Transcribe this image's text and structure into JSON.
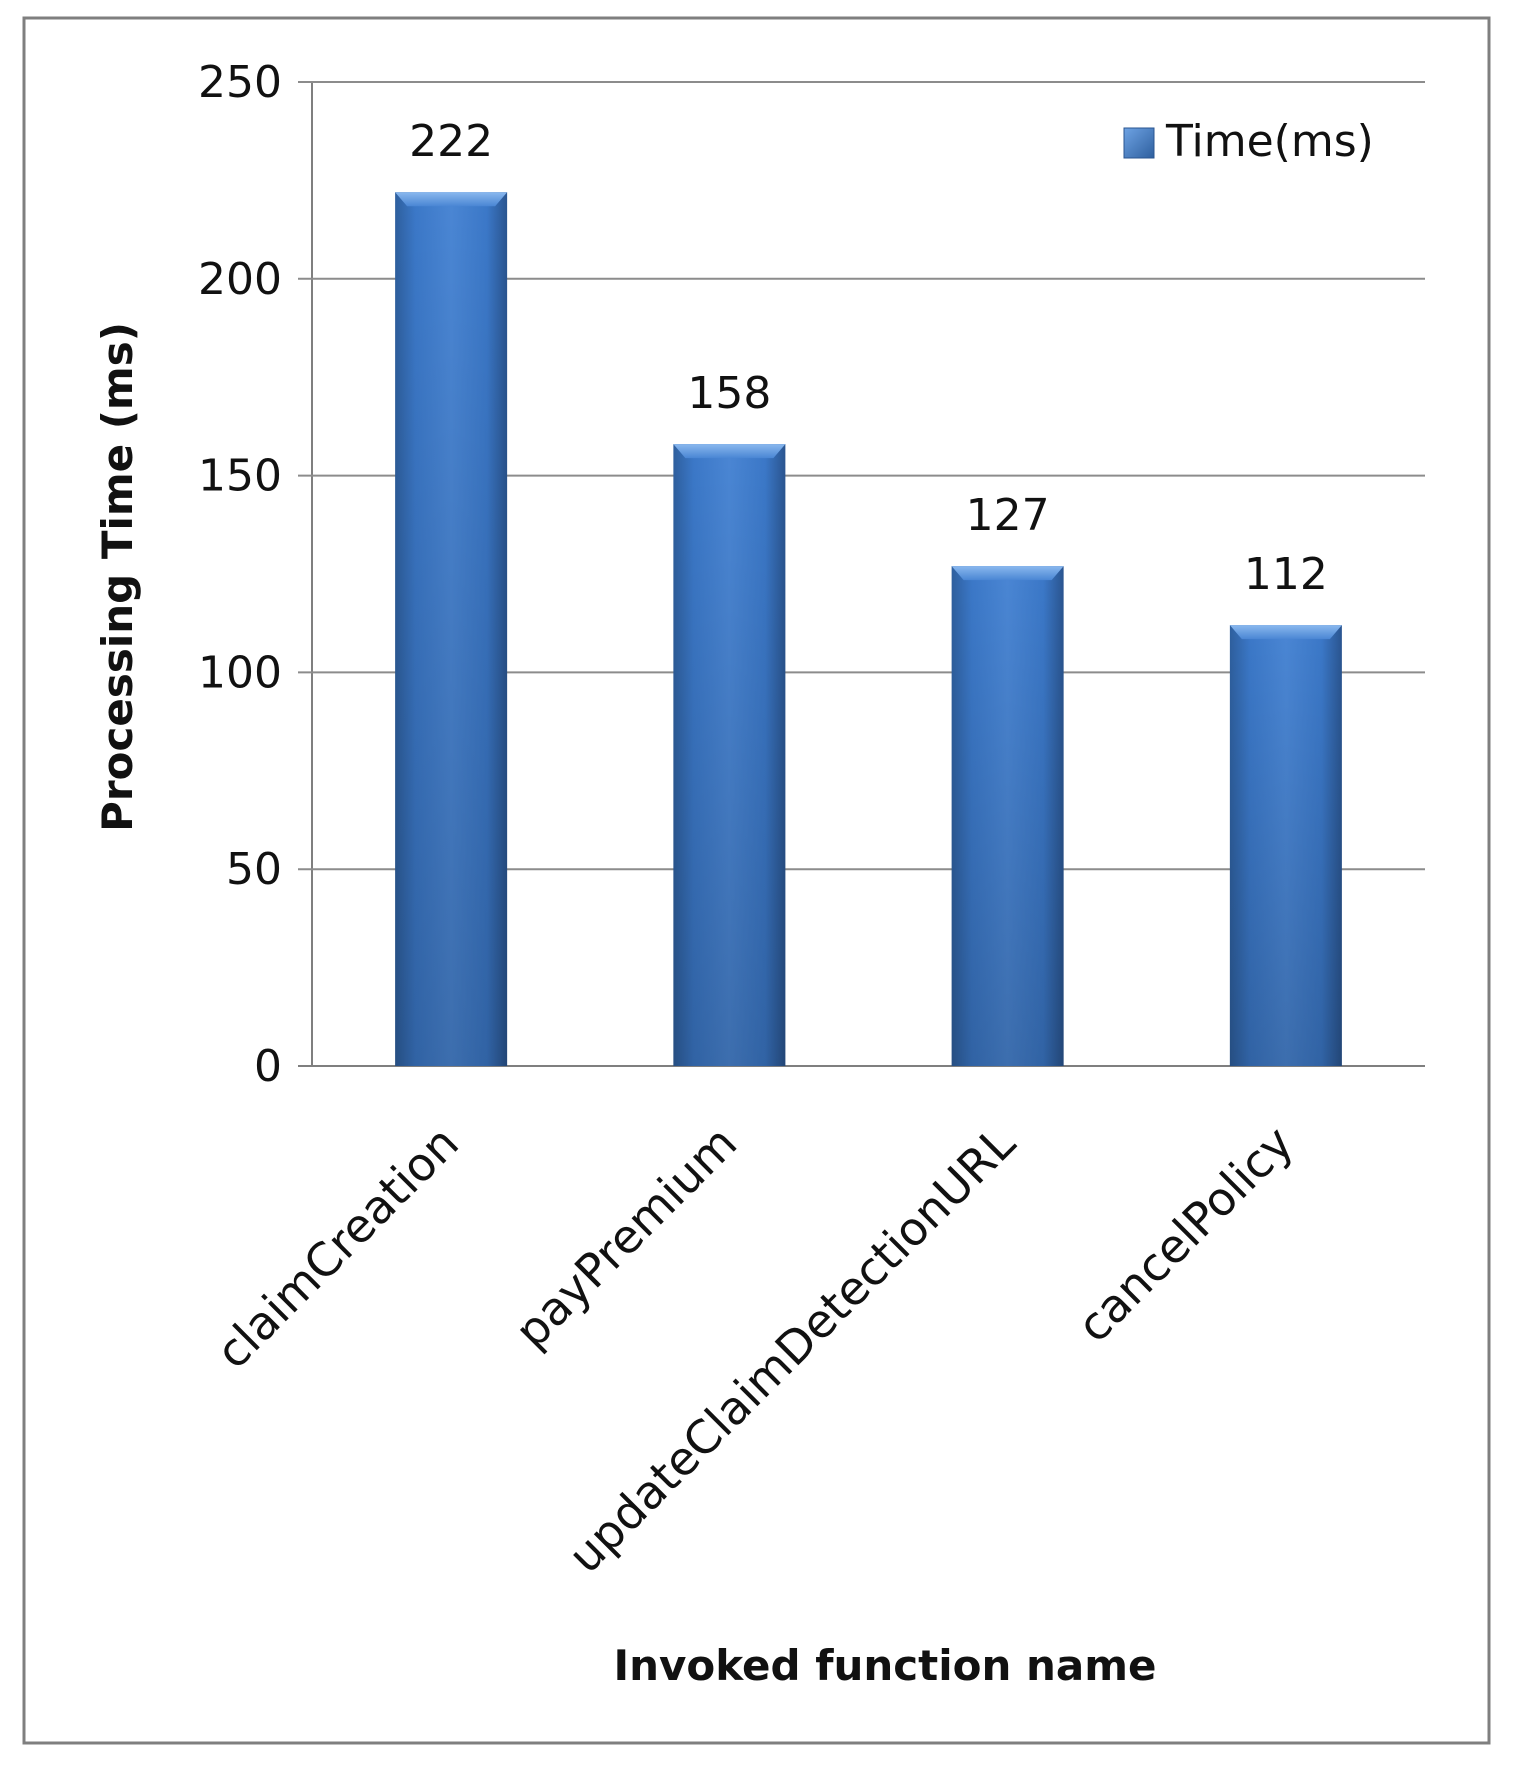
{
  "chart_data": {
    "type": "bar",
    "title": "",
    "xlabel": "Invoked function name",
    "ylabel": "Processing Time (ms)",
    "categories": [
      "claimCreation",
      "payPremium",
      "updateClaimDetectionURL",
      "cancelPolicy"
    ],
    "series": [
      {
        "name": "Time(ms)",
        "values": [
          222,
          158,
          127,
          112
        ],
        "color": "#3b78c8"
      }
    ],
    "ylim": [
      0,
      250
    ],
    "yticks": [
      0,
      50,
      100,
      150,
      200,
      250
    ],
    "data_labels": [
      "222",
      "158",
      "127",
      "112"
    ],
    "grid": true,
    "legend": "top-right"
  }
}
